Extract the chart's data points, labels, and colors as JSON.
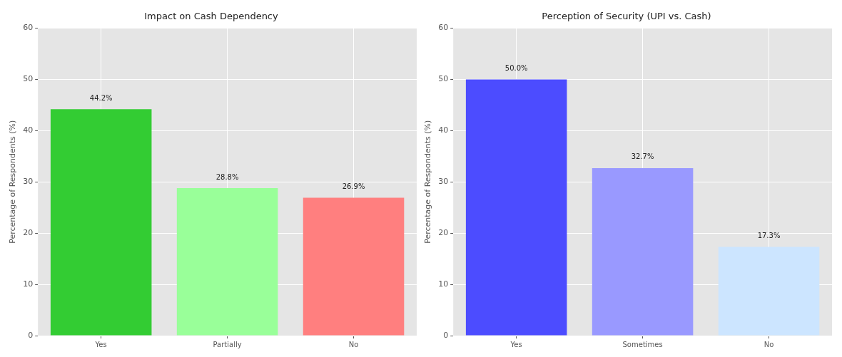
{
  "chart_data": [
    {
      "type": "bar",
      "title": "Impact on Cash Dependency",
      "ylabel": "Percentage of Respondents (%)",
      "categories": [
        "Yes",
        "Partially",
        "No"
      ],
      "values": [
        44.2,
        28.8,
        26.9
      ],
      "colors": [
        "#33cc33",
        "#99ff99",
        "#ff7f7f"
      ],
      "value_labels": [
        "44.2%",
        "28.8%",
        "26.9%"
      ],
      "ylim": [
        0,
        60
      ],
      "yticks": [
        0,
        10,
        20,
        30,
        40,
        50,
        60
      ],
      "grid": true
    },
    {
      "type": "bar",
      "title": "Perception of Security (UPI vs. Cash)",
      "ylabel": "Percentage of Respondents (%)",
      "categories": [
        "Yes",
        "Sometimes",
        "No"
      ],
      "values": [
        50.0,
        32.7,
        17.3
      ],
      "colors": [
        "#4c4cff",
        "#9999ff",
        "#cce5ff"
      ],
      "value_labels": [
        "50.0%",
        "32.7%",
        "17.3%"
      ],
      "ylim": [
        0,
        60
      ],
      "yticks": [
        0,
        10,
        20,
        30,
        40,
        50,
        60
      ],
      "grid": true
    }
  ]
}
